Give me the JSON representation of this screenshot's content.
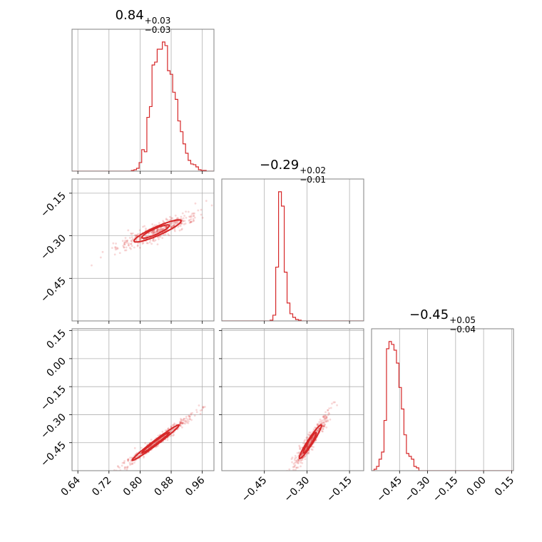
{
  "titles": {
    "p0": {
      "value": "0.84",
      "plus": "+0.03",
      "minus": "−0.03"
    },
    "p1": {
      "value": "−0.29",
      "plus": "+0.02",
      "minus": "−0.01"
    },
    "p2": {
      "value": "−0.45",
      "plus": "+0.05",
      "minus": "−0.04"
    }
  },
  "colors": {
    "series": "#d62728",
    "grid": "#b0b0b0",
    "frame": "#808080"
  },
  "chart_data": {
    "type": "corner",
    "grid": true,
    "parameters": [
      {
        "median": 0.84,
        "plus": 0.03,
        "minus": 0.03,
        "range": [
          0.625,
          0.99
        ],
        "ticks": [
          0.64,
          0.72,
          0.8,
          0.88,
          0.96
        ],
        "tick_labels": [
          "0.64",
          "0.72",
          "0.80",
          "0.88",
          "0.96"
        ]
      },
      {
        "median": -0.29,
        "plus": 0.02,
        "minus": 0.01,
        "range": [
          -0.6,
          -0.1
        ],
        "ticks": [
          -0.45,
          -0.3,
          -0.15
        ],
        "tick_labels": [
          "−0.45",
          "−0.30",
          "−0.15"
        ]
      },
      {
        "median": -0.45,
        "plus": 0.05,
        "minus": 0.04,
        "range": [
          -0.6,
          0.16
        ],
        "ticks": [
          -0.45,
          -0.3,
          -0.15,
          0.0,
          0.15
        ],
        "tick_labels": [
          "−0.45",
          "−0.30",
          "−0.15",
          "0.00",
          "0.15"
        ]
      }
    ],
    "row_ticks": {
      "1": {
        "ticks": [
          -0.15,
          -0.3,
          -0.45
        ],
        "tick_labels": [
          "−0.15",
          "−0.30",
          "−0.45"
        ]
      },
      "2": {
        "ticks": [
          0.15,
          0.0,
          -0.15,
          -0.3,
          -0.45
        ],
        "tick_labels": [
          "0.15",
          "0.00",
          "−0.15",
          "−0.30",
          "−0.45"
        ]
      }
    },
    "histograms": [
      {
        "param": 0,
        "bin_edges_range": [
          0.625,
          0.99
        ],
        "counts": [
          0,
          0,
          0,
          0,
          0,
          0,
          0,
          0,
          0,
          0,
          0,
          0,
          0,
          0,
          0,
          0,
          0,
          0,
          0,
          0,
          0,
          0,
          0,
          1,
          2,
          4,
          12,
          30,
          27,
          75,
          90,
          148,
          152,
          170,
          170,
          180,
          175,
          140,
          135,
          110,
          100,
          70,
          55,
          38,
          25,
          15,
          10,
          9,
          6,
          2,
          1,
          1,
          0,
          0,
          0
        ]
      },
      {
        "param": 1,
        "bin_edges_range": [
          -0.6,
          -0.1
        ],
        "counts": [
          0,
          0,
          0,
          0,
          0,
          0,
          0,
          0,
          0,
          0,
          0,
          0,
          0,
          0,
          0,
          0,
          0,
          1,
          8,
          75,
          180,
          160,
          68,
          25,
          10,
          5,
          2,
          1,
          0,
          0,
          0,
          0,
          0,
          0,
          0,
          0,
          0,
          0,
          0,
          0,
          0,
          0,
          0,
          0,
          0,
          0,
          0,
          0,
          0,
          0
        ]
      },
      {
        "param": 2,
        "bin_edges_range": [
          -0.6,
          0.16
        ],
        "counts": [
          0,
          1,
          3,
          8,
          13,
          35,
          85,
          90,
          88,
          84,
          75,
          58,
          43,
          25,
          12,
          10,
          8,
          3,
          2,
          0,
          0,
          0,
          0,
          0,
          0,
          0,
          0,
          0,
          0,
          0,
          0,
          0,
          0,
          0,
          0,
          0,
          0,
          0,
          0,
          0,
          0,
          0,
          0,
          0,
          0,
          0,
          0,
          0,
          0,
          0,
          0,
          0,
          0,
          0,
          0,
          0,
          0
        ]
      }
    ],
    "pairs": [
      {
        "x_param": 0,
        "y_param": 1,
        "sample_range": {
          "x": [
            0.75,
            0.96
          ],
          "y": [
            -0.33,
            -0.19
          ]
        },
        "contours": [
          {
            "level": "1sigma",
            "center": [
              0.84,
              -0.285
            ],
            "semi_major": [
              0.035,
              0.022
            ],
            "semi_minor": [
              0.005,
              -0.008
            ]
          },
          {
            "level": "2sigma",
            "center": [
              0.845,
              -0.283
            ],
            "semi_major": [
              0.06,
              0.037
            ],
            "semi_minor": [
              0.008,
              -0.012
            ]
          }
        ]
      },
      {
        "x_param": 0,
        "y_param": 2,
        "sample_range": {
          "x": [
            0.76,
            0.96
          ],
          "y": [
            -0.58,
            -0.23
          ]
        },
        "contours": [
          {
            "level": "1sigma",
            "center": [
              0.84,
              -0.45
            ],
            "semi_major": [
              0.035,
              0.055
            ],
            "semi_minor": [
              0.004,
              -0.003
            ]
          },
          {
            "level": "2sigma",
            "center": [
              0.84,
              -0.45
            ],
            "semi_major": [
              0.06,
              0.095
            ],
            "semi_minor": [
              0.007,
              -0.005
            ]
          }
        ]
      },
      {
        "x_param": 1,
        "y_param": 2,
        "sample_range": {
          "x": [
            -0.34,
            -0.2
          ],
          "y": [
            -0.58,
            -0.33
          ]
        },
        "contours": [
          {
            "level": "1sigma",
            "center": [
              -0.29,
              -0.45
            ],
            "semi_major": [
              0.022,
              0.055
            ],
            "semi_minor": [
              0.006,
              -0.003
            ]
          },
          {
            "level": "2sigma",
            "center": [
              -0.288,
              -0.445
            ],
            "semi_major": [
              0.038,
              0.09
            ],
            "semi_minor": [
              0.009,
              -0.005
            ]
          }
        ]
      }
    ]
  }
}
